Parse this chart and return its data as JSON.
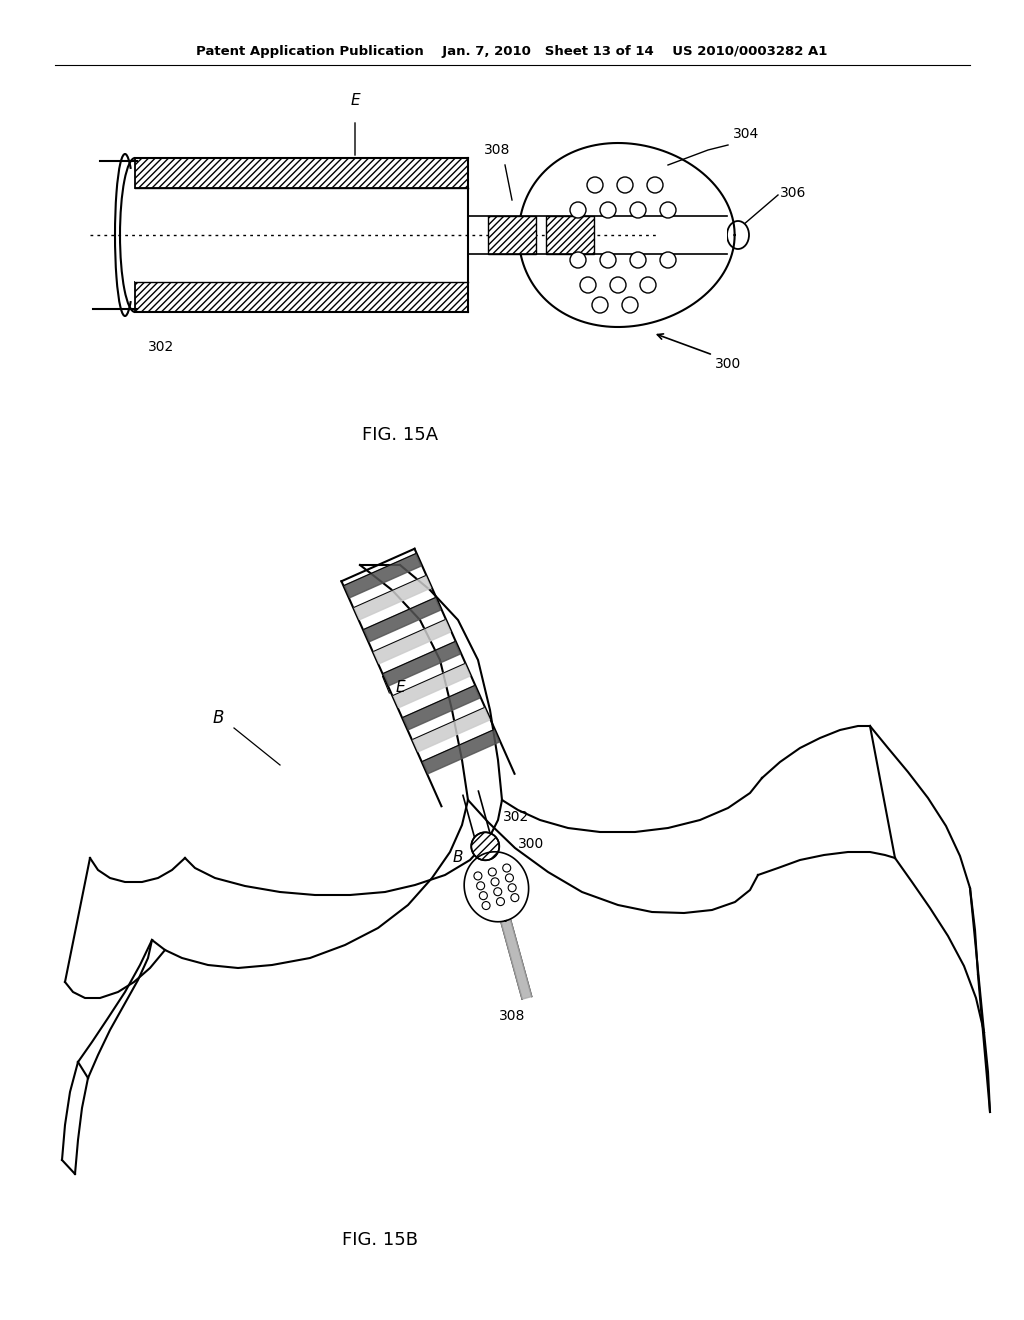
{
  "bg_color": "#ffffff",
  "line_color": "#000000",
  "header_text": "Patent Application Publication    Jan. 7, 2010   Sheet 13 of 14    US 2010/0003282 A1",
  "fig15a_label": "FIG. 15A",
  "fig15b_label": "FIG. 15B"
}
